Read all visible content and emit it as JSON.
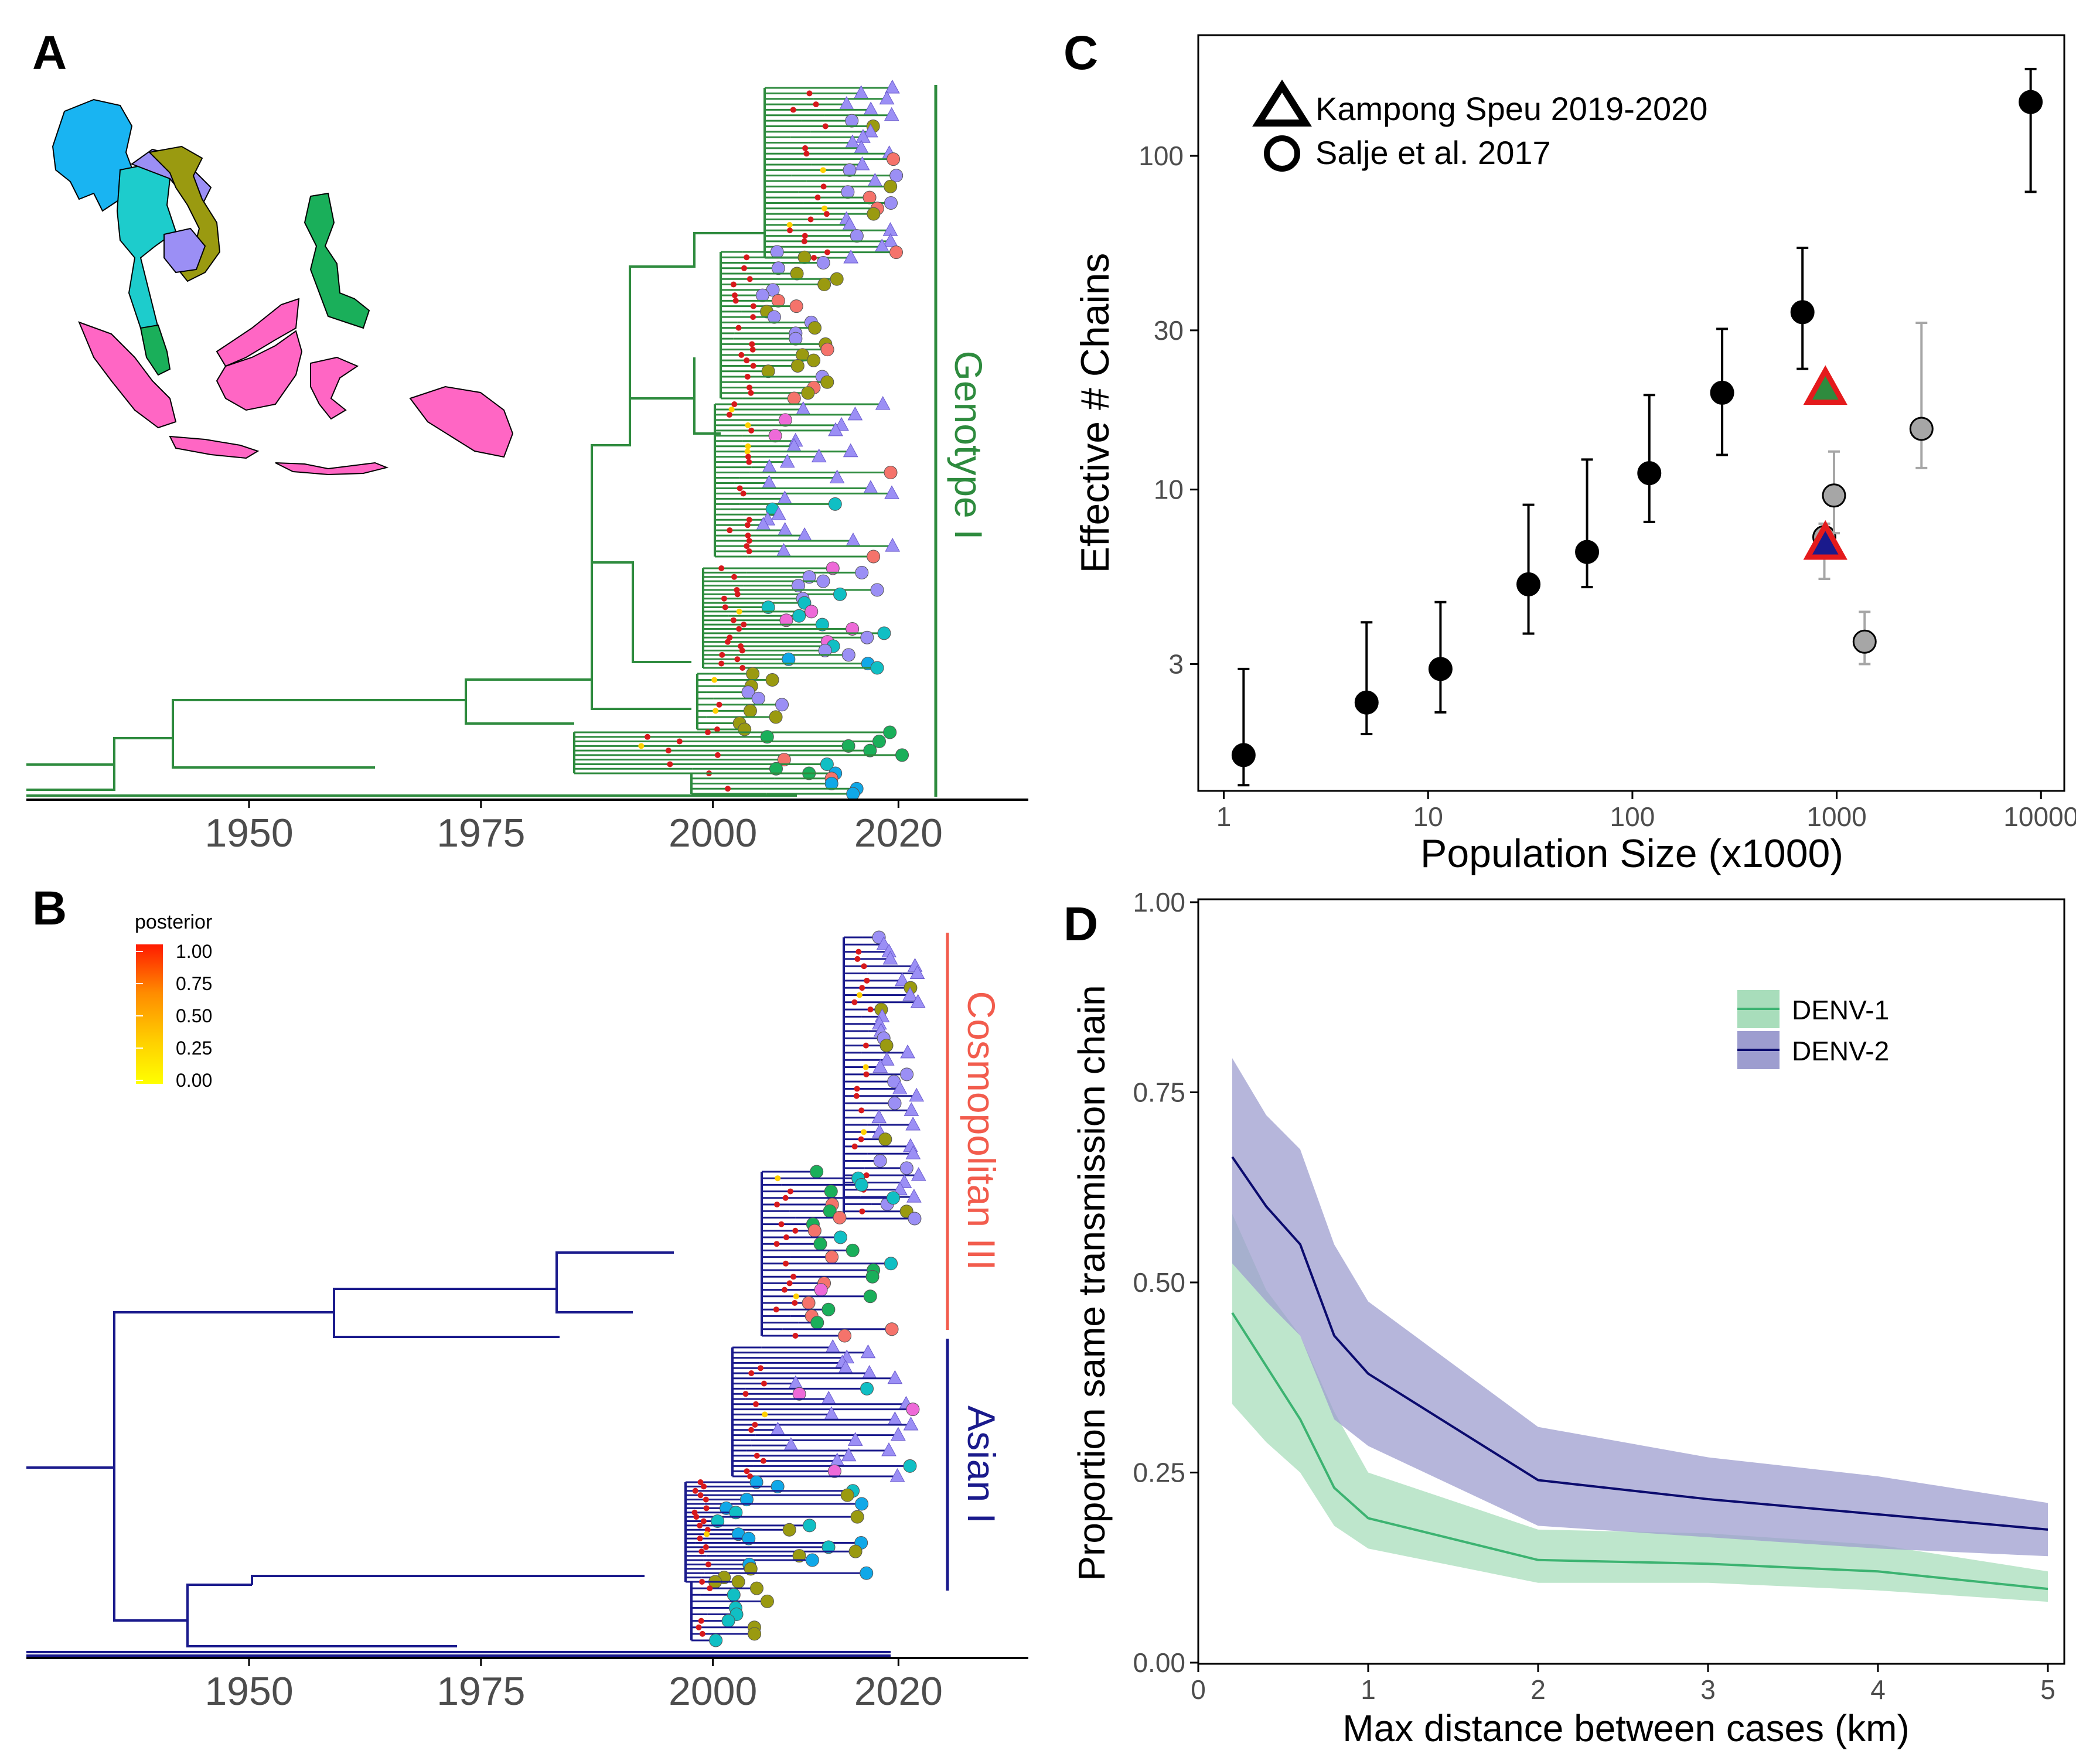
{
  "panels": {
    "A": {
      "letter": "A",
      "clade_label": "Genotype I",
      "clade_color": "#2E8B3E"
    },
    "B": {
      "letter": "B",
      "clade_labels": [
        "Cosmopolitan III",
        "Asian I"
      ],
      "clade_colors": [
        "#F25C4D",
        "#1A1A8C"
      ]
    },
    "C": {
      "letter": "C"
    },
    "D": {
      "letter": "D"
    }
  },
  "posterior_legend": {
    "title": "posterior",
    "ticks": [
      "1.00",
      "0.75",
      "0.50",
      "0.25",
      "0.00"
    ],
    "colors": [
      "#FF1A00",
      "#FF8C00",
      "#FFD000",
      "#FFFF00"
    ]
  },
  "tip_colors": {
    "lavender": "#9B8FF5",
    "olive": "#9A9A10",
    "salmon": "#F5736B",
    "teal": "#10BFC4",
    "pink": "#EE6AD8",
    "green": "#1AAF5A",
    "blue": "#10A8E8",
    "node": "#D7191C"
  },
  "map_colors": [
    "#19B4F2",
    "#1DCCCC",
    "#9A9A10",
    "#EE6AD8",
    "#9B8FF5",
    "#1AAF5A",
    "#FF66C4"
  ],
  "chart_data": [
    {
      "id": "A",
      "type": "tree",
      "x": [
        1950,
        1975,
        2000,
        2020
      ],
      "xticks": [
        "1950",
        "1975",
        "2000",
        "2020"
      ],
      "xlim": [
        1926,
        2034
      ]
    },
    {
      "id": "B",
      "type": "tree",
      "x": [
        1950,
        1975,
        2000,
        2020
      ],
      "xticks": [
        "1950",
        "1975",
        "2000",
        "2020"
      ],
      "xlim": [
        1926,
        2034
      ]
    },
    {
      "id": "C",
      "type": "scatter",
      "xlabel": "Population Size (x1000)",
      "ylabel": "Effective # Chains",
      "xscale": "log",
      "yscale": "log",
      "xlim": [
        0.75,
        13000
      ],
      "ylim": [
        1.25,
        230
      ],
      "xticks": [
        1,
        10,
        100,
        1000,
        10000
      ],
      "xtick_labels": [
        "1",
        "10",
        "100",
        "1000",
        "10000"
      ],
      "yticks": [
        3,
        10,
        30,
        100
      ],
      "ytick_labels": [
        "3",
        "10",
        "30",
        "100"
      ],
      "legend": [
        "Kampong Speu 2019-2020",
        "Salje et al. 2017"
      ],
      "legend_position": "top-left",
      "series": [
        {
          "name": "Salje et al. 2017",
          "color": "#000000",
          "points": [
            {
              "x": 1.25,
              "y": 1.6,
              "lo": 1.3,
              "hi": 2.9
            },
            {
              "x": 5,
              "y": 2.3,
              "lo": 1.85,
              "hi": 4.0
            },
            {
              "x": 11.5,
              "y": 2.9,
              "lo": 2.15,
              "hi": 4.6
            },
            {
              "x": 31,
              "y": 5.2,
              "lo": 3.7,
              "hi": 9.0
            },
            {
              "x": 60,
              "y": 6.5,
              "lo": 5.1,
              "hi": 12.3
            },
            {
              "x": 121,
              "y": 11.2,
              "lo": 8.0,
              "hi": 19.2
            },
            {
              "x": 275,
              "y": 19.5,
              "lo": 12.7,
              "hi": 30.3
            },
            {
              "x": 680,
              "y": 34,
              "lo": 23,
              "hi": 53
            },
            {
              "x": 8900,
              "y": 145,
              "lo": 78,
              "hi": 182
            }
          ]
        },
        {
          "name": "grey",
          "color": "#A6A6A6",
          "points": [
            {
              "x": 870,
              "y": 7.2,
              "lo": 5.4,
              "hi": 7.9
            },
            {
              "x": 970,
              "y": 9.6,
              "lo": 7.4,
              "hi": 13.0
            },
            {
              "x": 1370,
              "y": 3.5,
              "lo": 3.0,
              "hi": 4.3
            },
            {
              "x": 2600,
              "y": 15.2,
              "lo": 11.6,
              "hi": 31.6
            }
          ]
        },
        {
          "name": "Kampong Speu 2019-2020",
          "color": "#2E8B3E",
          "points": [
            {
              "x": 880,
              "y": 19.8,
              "fill": "#2E8B3E",
              "edge": "#E41A1C"
            },
            {
              "x": 880,
              "y": 6.8,
              "fill": "#1A1A8C",
              "edge": "#E41A1C"
            }
          ]
        }
      ]
    },
    {
      "id": "D",
      "type": "line",
      "xlabel": "Max distance between cases (km)",
      "ylabel": "Proportion same transmission chain",
      "xlim": [
        0,
        5
      ],
      "ylim": [
        0,
        1
      ],
      "xticks": [
        0,
        1,
        2,
        3,
        4,
        5
      ],
      "xtick_labels": [
        "0",
        "1",
        "2",
        "3",
        "4",
        "5"
      ],
      "yticks": [
        0,
        0.25,
        0.5,
        0.75,
        1
      ],
      "ytick_labels": [
        "0.00",
        "0.25",
        "0.50",
        "0.75",
        "1.00"
      ],
      "legend_position": "top-right",
      "x": [
        0.2,
        0.4,
        0.6,
        0.8,
        1,
        2,
        3,
        4,
        5
      ],
      "series": [
        {
          "name": "DENV-1",
          "color": "#3CB371",
          "fill": "#A8DDBB",
          "values": [
            0.46,
            0.39,
            0.32,
            0.23,
            0.19,
            0.135,
            0.13,
            0.12,
            0.097
          ],
          "lower": [
            0.34,
            0.29,
            0.25,
            0.18,
            0.15,
            0.105,
            0.105,
            0.095,
            0.08
          ],
          "upper": [
            0.59,
            0.49,
            0.43,
            0.33,
            0.25,
            0.175,
            0.17,
            0.155,
            0.12
          ]
        },
        {
          "name": "DENV-2",
          "color": "#0B0B6E",
          "fill": "#9D9DCF",
          "values": [
            0.665,
            0.6,
            0.55,
            0.43,
            0.38,
            0.24,
            0.215,
            0.195,
            0.175
          ],
          "lower": [
            0.525,
            0.475,
            0.43,
            0.32,
            0.285,
            0.18,
            0.165,
            0.15,
            0.14
          ],
          "upper": [
            0.795,
            0.72,
            0.675,
            0.55,
            0.475,
            0.31,
            0.27,
            0.245,
            0.21
          ]
        }
      ]
    }
  ]
}
